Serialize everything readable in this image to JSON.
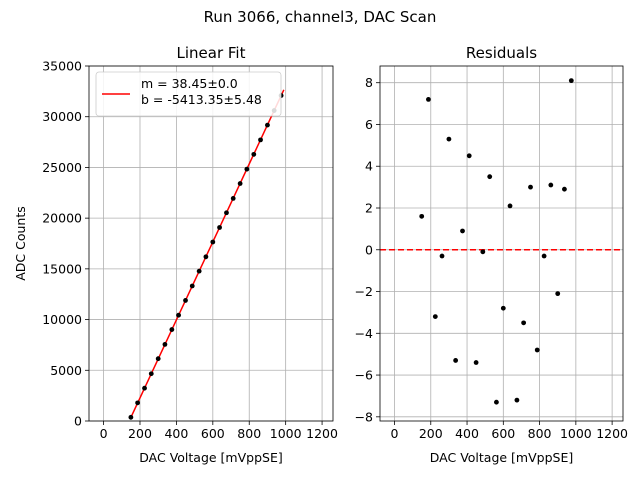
{
  "figure": {
    "suptitle": "Run 3066, channel3, DAC Scan"
  },
  "chart_data": [
    {
      "type": "scatter",
      "title": "Linear Fit",
      "xlabel": "DAC Voltage [mVppSE]",
      "ylabel": "ADC Counts",
      "xlim": [
        -80,
        1260
      ],
      "ylim": [
        0,
        35000
      ],
      "xticks": [
        0,
        200,
        400,
        600,
        800,
        1000,
        1200
      ],
      "xtick_labels": [
        "0",
        "200",
        "400",
        "600",
        "800",
        "1000",
        "1200"
      ],
      "yticks": [
        0,
        5000,
        10000,
        15000,
        20000,
        25000,
        30000,
        35000
      ],
      "ytick_labels": [
        "0",
        "5000",
        "10000",
        "15000",
        "20000",
        "25000",
        "30000",
        "35000"
      ],
      "grid": true,
      "legend": {
        "position": "upper-left",
        "entries": [
          "m = 38.45±0.0",
          "b = -5413.35±5.48"
        ]
      },
      "colors": {
        "points": "#000000",
        "fit_line": "#ff0000",
        "grid": "#b0b0b0"
      },
      "fit": {
        "slope": 38.45,
        "intercept": -5413.35,
        "x_range": [
          150,
          990
        ]
      },
      "series": [
        {
          "x": [
            150,
            187,
            225,
            262,
            300,
            337,
            375,
            412,
            450,
            487,
            525,
            562,
            600,
            637,
            675,
            712,
            750,
            787,
            825,
            862,
            900,
            937,
            975
          ],
          "y": [
            362,
            1788,
            3235,
            4661,
            6143,
            7553,
            9014,
            10432,
            11888,
            13311,
            14773,
            16189,
            17648,
            19077,
            20530,
            21948,
            23413,
            24832,
            26288,
            27717,
            29174,
            30608,
            32083
          ]
        }
      ]
    },
    {
      "type": "scatter",
      "title": "Residuals",
      "xlabel": "DAC Voltage [mVppSE]",
      "ylabel": "",
      "xlim": [
        -80,
        1260
      ],
      "ylim": [
        -8.2,
        8.8
      ],
      "xticks": [
        0,
        200,
        400,
        600,
        800,
        1000,
        1200
      ],
      "xtick_labels": [
        "0",
        "200",
        "400",
        "600",
        "800",
        "1000",
        "1200"
      ],
      "yticks": [
        -8,
        -6,
        -4,
        -2,
        0,
        2,
        4,
        6,
        8
      ],
      "ytick_labels": [
        "−8",
        "−6",
        "−4",
        "−2",
        "0",
        "2",
        "4",
        "6",
        "8"
      ],
      "grid": true,
      "reference_line": {
        "y": 0,
        "style": "dashed",
        "color": "#ff0000"
      },
      "colors": {
        "points": "#000000",
        "grid": "#b0b0b0"
      },
      "series": [
        {
          "x": [
            150,
            187,
            225,
            262,
            300,
            337,
            375,
            412,
            450,
            487,
            525,
            562,
            600,
            637,
            675,
            712,
            750,
            787,
            825,
            862,
            900,
            937,
            975
          ],
          "y": [
            1.6,
            7.2,
            -3.2,
            -0.3,
            5.3,
            -5.3,
            0.9,
            4.5,
            -5.4,
            -0.1,
            3.5,
            -7.3,
            -2.8,
            2.1,
            -7.2,
            -3.5,
            3.0,
            -4.8,
            -0.3,
            3.1,
            -2.1,
            2.9,
            8.1
          ]
        }
      ]
    }
  ]
}
